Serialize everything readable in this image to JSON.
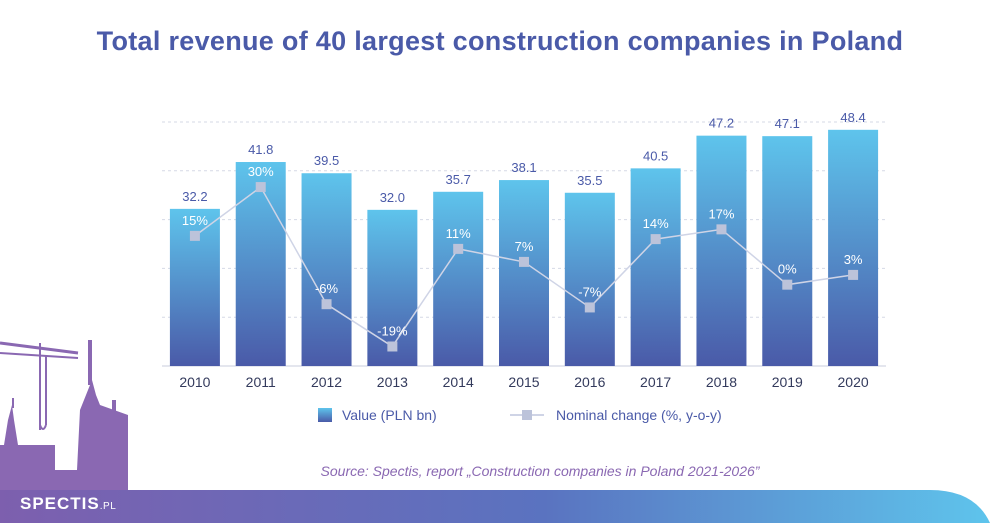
{
  "title": "Total revenue of 40 largest construction companies in Poland",
  "source": "Source: Spectis, report „Construction companies in Poland 2021-2026”",
  "brand": {
    "name": "SPECTIS",
    "suffix": ".PL"
  },
  "colors": {
    "title": "#4a5aa8",
    "bar_top": "#5ec4ec",
    "bar_bottom": "#4a5aa8",
    "line": "#cfd4e6",
    "marker": "#bcc3da",
    "value_label": "#4a5aa8",
    "pct_label": "#ffffff",
    "skyline": "#8a68b2",
    "footer_start": "#7d5fae",
    "footer_end": "#5ec4ec",
    "source": "#8a68b2"
  },
  "chart_data": {
    "type": "bar",
    "categories": [
      "2010",
      "2011",
      "2012",
      "2013",
      "2014",
      "2015",
      "2016",
      "2017",
      "2018",
      "2019",
      "2020"
    ],
    "series": [
      {
        "name": "Value (PLN bn)",
        "type": "bar",
        "values": [
          32.2,
          41.8,
          39.5,
          32.0,
          35.7,
          38.1,
          35.5,
          40.5,
          47.2,
          47.1,
          48.4
        ],
        "labels": [
          "32.2",
          "41.8",
          "39.5",
          "32.0",
          "35.7",
          "38.1",
          "35.5",
          "40.5",
          "47.2",
          "47.1",
          "48.4"
        ]
      },
      {
        "name": "Nominal change (%, y-o-y)",
        "type": "line",
        "values": [
          15,
          30,
          -6,
          -19,
          11,
          7,
          -7,
          14,
          17,
          0,
          3
        ],
        "labels": [
          "15%",
          "30%",
          "-6%",
          "-19%",
          "11%",
          "7%",
          "-7%",
          "14%",
          "17%",
          "0%",
          "3%"
        ]
      }
    ],
    "ylim": [
      0,
      50
    ],
    "y2lim": [
      -25,
      50
    ],
    "grid": true,
    "legend_position": "bottom"
  }
}
